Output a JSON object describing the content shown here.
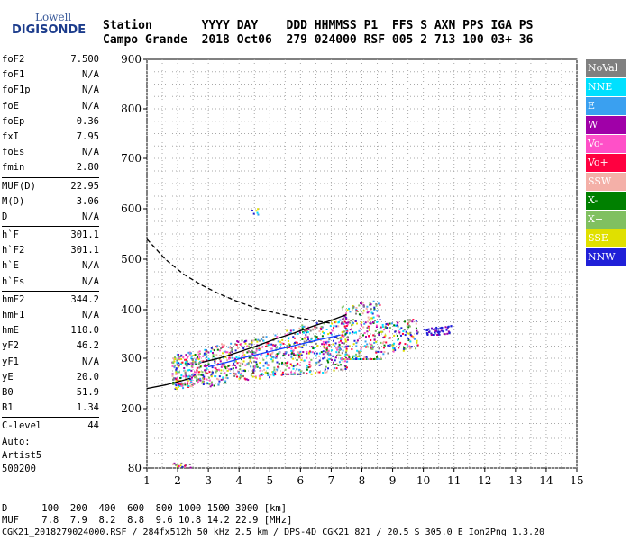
{
  "logo": {
    "line1": "Lowell",
    "line2": "DIGISONDE"
  },
  "header": {
    "row1": "Station       YYYY DAY    DDD HHMMSS P1  FFS S AXN PPS IGA PS",
    "row2": "Campo Grande  2018 Oct06  279 024000 RSF 005 2 713 100 03+ 36"
  },
  "params": [
    [
      {
        "name": "foF2",
        "value": "7.500"
      },
      {
        "name": "foF1",
        "value": "N/A"
      },
      {
        "name": "foF1p",
        "value": "N/A"
      },
      {
        "name": "foE",
        "value": "N/A"
      },
      {
        "name": "foEp",
        "value": "0.36"
      },
      {
        "name": "fxI",
        "value": "7.95"
      },
      {
        "name": "foEs",
        "value": "N/A"
      },
      {
        "name": "fmin",
        "value": "2.80"
      }
    ],
    [
      {
        "name": "MUF(D)",
        "value": "22.95"
      },
      {
        "name": "M(D)",
        "value": "3.06"
      },
      {
        "name": "D",
        "value": "N/A"
      }
    ],
    [
      {
        "name": "h`F",
        "value": "301.1"
      },
      {
        "name": "h`F2",
        "value": "301.1"
      },
      {
        "name": "h`E",
        "value": "N/A"
      },
      {
        "name": "h`Es",
        "value": "N/A"
      }
    ],
    [
      {
        "name": "hmF2",
        "value": "344.2"
      },
      {
        "name": "hmF1",
        "value": "N/A"
      },
      {
        "name": "hmE",
        "value": "110.0"
      },
      {
        "name": "yF2",
        "value": "46.2"
      },
      {
        "name": "yF1",
        "value": "N/A"
      },
      {
        "name": "yE",
        "value": "20.0"
      },
      {
        "name": "B0",
        "value": "51.9"
      },
      {
        "name": "B1",
        "value": "1.34"
      }
    ],
    [
      {
        "name": "C-level",
        "value": "44"
      }
    ]
  ],
  "auto": {
    "line1": "Auto:",
    "line2": "Artist5",
    "line3": "500200"
  },
  "legend": [
    {
      "label": "NoVal",
      "color": "#808080"
    },
    {
      "label": "NNE",
      "color": "#00e0ff"
    },
    {
      "label": "E",
      "color": "#3aa0f0"
    },
    {
      "label": "W",
      "color": "#a000a8"
    },
    {
      "label": "Vo-",
      "color": "#ff50c8"
    },
    {
      "label": "Vo+",
      "color": "#ff0040"
    },
    {
      "label": "SSW",
      "color": "#f4b0a8"
    },
    {
      "label": "X-",
      "color": "#008000"
    },
    {
      "label": "X+",
      "color": "#80c060"
    },
    {
      "label": "SSE",
      "color": "#e0e000"
    },
    {
      "label": "NNW",
      "color": "#2020d8"
    }
  ],
  "footer": {
    "row1": "D      100  200  400  600  800 1000 1500 3000 [km]",
    "row2": "MUF    7.8  7.9  8.2  8.8  9.6 10.8 14.2 22.9 [MHz]",
    "row3": "CGK21_2018279024000.RSF / 284fx512h 50 kHz 2.5 km / DPS-4D CGK21 821 / 20.5 S 305.0 E Ion2Png 1.3.20"
  },
  "chart_data": {
    "type": "scatter",
    "xlim": [
      1,
      15
    ],
    "ylim": [
      80,
      900
    ],
    "x_ticks": [
      "1",
      "2",
      "3",
      "4",
      "5",
      "6",
      "7",
      "8",
      "9",
      "10",
      "11",
      "12",
      "13",
      "14",
      "15"
    ],
    "y_ticks": [
      "80",
      "200",
      "300",
      "400",
      "500",
      "600",
      "700",
      "800",
      "900"
    ],
    "grid": true,
    "y_scale": "nonlinear",
    "fits": [
      {
        "style": "dashed",
        "color": "#000000",
        "x": [
          1.0,
          1.6,
          2.2,
          2.8,
          3.4,
          4.0,
          4.6,
          5.2,
          5.8,
          6.4,
          7.0
        ],
        "y": [
          540,
          500,
          470,
          448,
          430,
          415,
          402,
          393,
          385,
          378,
          372
        ]
      },
      {
        "style": "solid",
        "color": "#000000",
        "x": [
          2.8,
          3.4,
          4.0,
          4.6,
          5.2,
          5.8,
          6.4,
          7.0,
          7.5
        ],
        "y": [
          292,
          301,
          313,
          326,
          340,
          352,
          366,
          378,
          390
        ]
      },
      {
        "style": "solid",
        "color": "#1040ff",
        "x": [
          3.0,
          3.6,
          4.2,
          4.8,
          5.4,
          6.0,
          6.6,
          7.3
        ],
        "y": [
          283,
          292,
          302,
          311,
          320,
          329,
          338,
          348
        ]
      },
      {
        "style": "solid",
        "color": "#000000",
        "x": [
          1.0,
          1.6,
          2.0,
          2.4
        ],
        "y": [
          240,
          247,
          253,
          260
        ]
      }
    ],
    "clusters": [
      {
        "x": [
          1.8,
          3.0
        ],
        "y": [
          230,
          330
        ],
        "n": 260
      },
      {
        "x": [
          3.0,
          5.5
        ],
        "y": [
          240,
          360
        ],
        "n": 380
      },
      {
        "x": [
          5.5,
          7.6
        ],
        "y": [
          270,
          420
        ],
        "n": 360
      },
      {
        "x": [
          7.3,
          8.6
        ],
        "y": [
          300,
          520
        ],
        "n": 260
      },
      {
        "x": [
          8.6,
          9.8
        ],
        "y": [
          300,
          390
        ],
        "n": 120
      },
      {
        "x": [
          10.0,
          10.9
        ],
        "y": [
          350,
          375
        ],
        "n": 50
      },
      {
        "x": [
          1.8,
          2.4
        ],
        "y": [
          82,
          92
        ],
        "n": 18
      },
      {
        "x": [
          4.4,
          4.6
        ],
        "y": [
          590,
          603
        ],
        "n": 6
      }
    ]
  }
}
